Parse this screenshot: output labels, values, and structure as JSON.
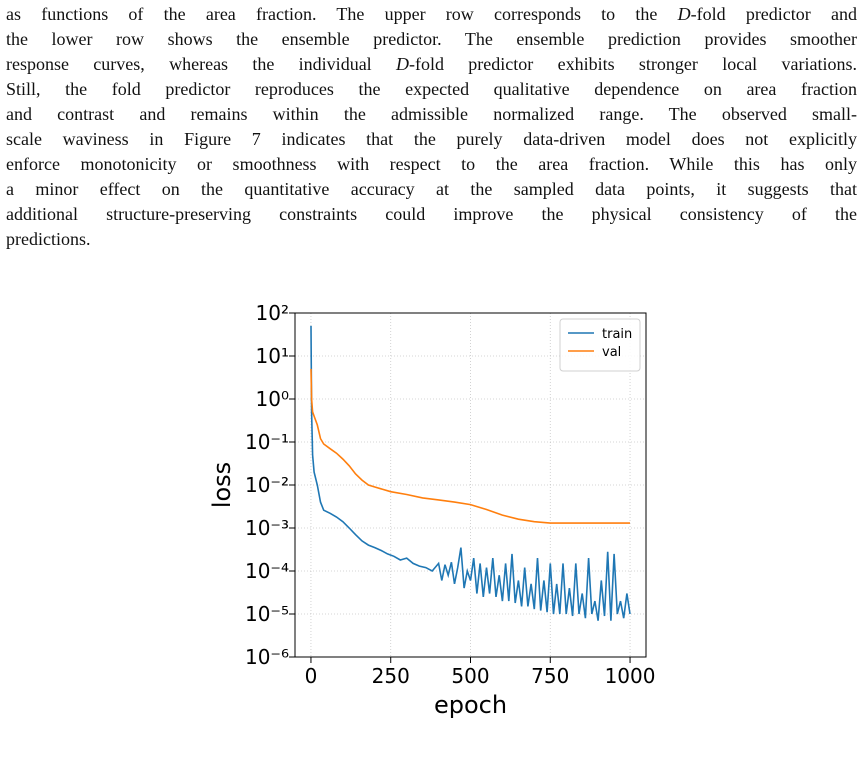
{
  "paragraph": {
    "lines": [
      [
        "as functions of the area fraction. The upper row corresponds to the ",
        "D",
        "-fold predictor and"
      ],
      [
        "the lower row shows the ensemble predictor. The ensemble prediction provides smoother"
      ],
      [
        "response curves, whereas the individual ",
        "D",
        "-fold predictor exhibits stronger local variations."
      ],
      [
        "Still, the fold predictor reproduces the expected qualitative dependence on area fraction"
      ],
      [
        "and contrast and remains within the admissible normalized range. The observed small-"
      ],
      [
        "scale waviness in Figure 7 indicates that the purely data-driven model does not explicitly"
      ],
      [
        "enforce monotonicity or smoothness with respect to the area fraction. While this has only"
      ],
      [
        "a minor effect on the quantitative accuracy at the sampled data points, it suggests that"
      ],
      [
        "additional structure-preserving constraints could improve the physical consistency of the"
      ],
      [
        "predictions."
      ]
    ]
  },
  "chart_data": {
    "type": "line",
    "x_label": "epoch",
    "y_label": "loss",
    "log_y": true,
    "grid": true,
    "legend": "upper right",
    "xlim": [
      -50,
      1050
    ],
    "xticks": [
      0,
      250,
      500,
      750,
      1000
    ],
    "ylim": [
      1e-06,
      100
    ],
    "yticks": [
      {
        "value": 100,
        "label": "10²"
      },
      {
        "value": 10,
        "label": "10¹"
      },
      {
        "value": 1,
        "label": "10⁰"
      },
      {
        "value": 0.1,
        "label": "10⁻¹"
      },
      {
        "value": 0.01,
        "label": "10⁻²"
      },
      {
        "value": 0.001,
        "label": "10⁻³"
      },
      {
        "value": 0.0001,
        "label": "10⁻⁴"
      },
      {
        "value": 1e-05,
        "label": "10⁻⁵"
      },
      {
        "value": 1e-06,
        "label": "10⁻⁶"
      }
    ],
    "series": [
      {
        "name": "train",
        "color": "#1f77b4",
        "x": [
          0,
          2,
          5,
          10,
          20,
          30,
          40,
          60,
          80,
          100,
          120,
          140,
          160,
          180,
          200,
          220,
          240,
          260,
          280,
          300,
          320,
          340,
          360,
          380,
          400,
          410,
          420,
          430,
          440,
          450,
          460,
          470,
          480,
          490,
          500,
          510,
          520,
          530,
          540,
          550,
          560,
          570,
          580,
          590,
          600,
          610,
          620,
          630,
          640,
          650,
          660,
          670,
          680,
          690,
          700,
          710,
          720,
          730,
          740,
          750,
          760,
          770,
          780,
          790,
          800,
          810,
          820,
          830,
          840,
          850,
          860,
          870,
          880,
          890,
          900,
          910,
          920,
          930,
          940,
          950,
          960,
          970,
          980,
          990,
          1000
        ],
        "values": [
          50,
          0.5,
          0.05,
          0.02,
          0.01,
          0.004,
          0.0026,
          0.0022,
          0.0018,
          0.0014,
          0.001,
          0.0007,
          0.0005,
          0.0004,
          0.00035,
          0.0003,
          0.00025,
          0.00022,
          0.00018,
          0.0002,
          0.00015,
          0.00013,
          0.00012,
          0.0001,
          0.00015,
          6e-05,
          0.00014,
          8e-05,
          0.00016,
          5e-05,
          0.00012,
          0.00035,
          4e-05,
          0.0001,
          6e-05,
          0.0002,
          3e-05,
          0.00015,
          2.5e-05,
          0.00012,
          3e-05,
          0.0002,
          2.5e-05,
          8e-05,
          2e-05,
          0.00015,
          2e-05,
          0.00025,
          1.8e-05,
          6e-05,
          1.5e-05,
          0.00012,
          1.5e-05,
          5e-05,
          1.3e-05,
          0.0002,
          1.2e-05,
          6e-05,
          1.1e-05,
          0.00015,
          1e-05,
          5e-05,
          1e-05,
          0.00015,
          1e-05,
          4e-05,
          9e-06,
          0.00015,
          1e-05,
          3e-05,
          8e-06,
          0.0002,
          1e-05,
          2e-05,
          7e-06,
          6e-05,
          9e-06,
          0.00028,
          7e-06,
          0.00025,
          1e-05,
          2e-05,
          8e-06,
          3e-05,
          1e-05
        ]
      },
      {
        "name": "val",
        "color": "#ff7f0e",
        "x": [
          0,
          2,
          5,
          10,
          20,
          30,
          40,
          60,
          80,
          100,
          120,
          140,
          160,
          180,
          200,
          250,
          300,
          350,
          400,
          450,
          500,
          550,
          600,
          650,
          700,
          750,
          800,
          900,
          1000
        ],
        "values": [
          5,
          1,
          0.5,
          0.4,
          0.25,
          0.12,
          0.09,
          0.07,
          0.055,
          0.04,
          0.028,
          0.018,
          0.013,
          0.01,
          0.009,
          0.007,
          0.006,
          0.005,
          0.0045,
          0.004,
          0.0035,
          0.0027,
          0.002,
          0.0016,
          0.0014,
          0.0013,
          0.0013,
          0.0013,
          0.0013
        ]
      }
    ]
  }
}
